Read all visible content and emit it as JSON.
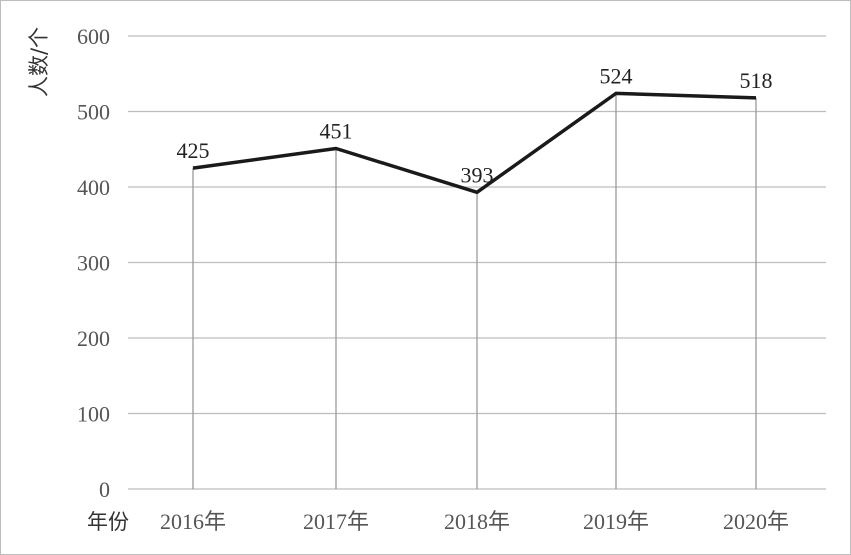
{
  "chart_data": {
    "type": "line",
    "categories": [
      "2016年",
      "2017年",
      "2018年",
      "2019年",
      "2020年"
    ],
    "values": [
      425,
      451,
      393,
      524,
      518
    ],
    "title": "",
    "xlabel": "年份",
    "ylabel": "人数/个",
    "ylim": [
      0,
      600
    ],
    "yticks": [
      0,
      100,
      200,
      300,
      400,
      500,
      600
    ],
    "grid": "horizontal",
    "data_labels": true,
    "drop_lines": true,
    "line_color": "#1a1a1a",
    "grid_color": "#bdbdbd"
  }
}
